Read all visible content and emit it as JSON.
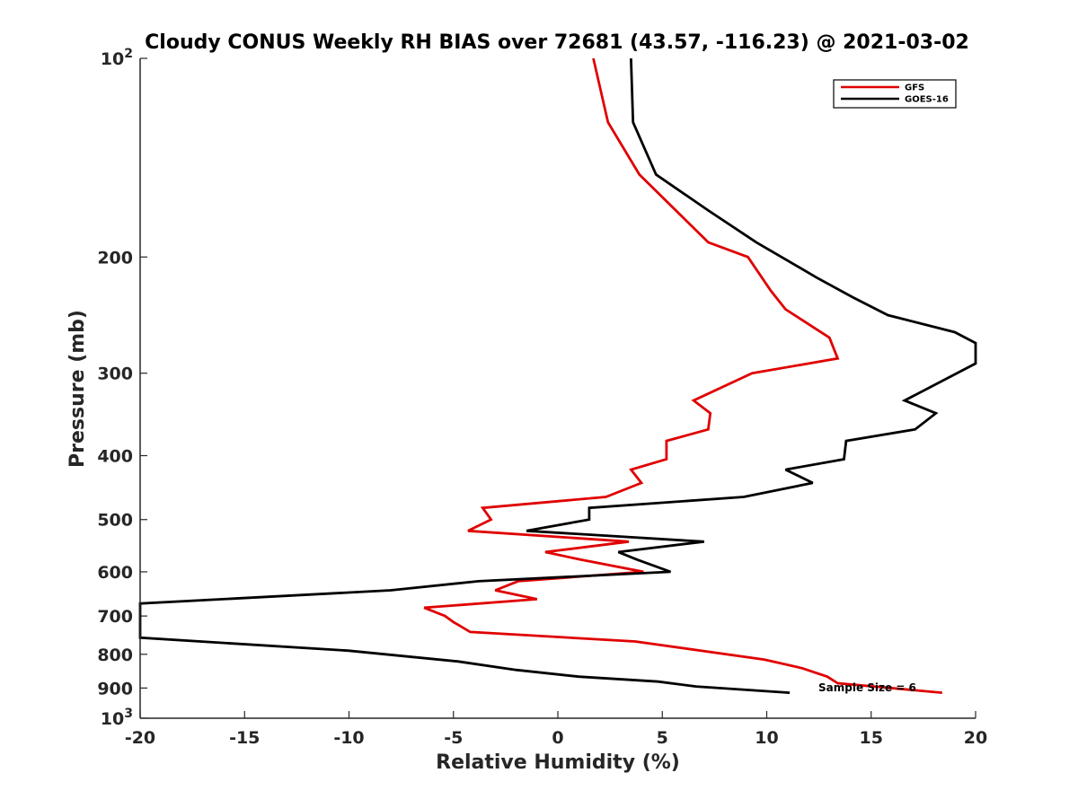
{
  "chart_data": {
    "type": "line",
    "title": "Cloudy CONUS Weekly RH BIAS over 72681 (43.57, -116.23) @ 2021-03-02",
    "xlabel": "Relative Humidity (%)",
    "ylabel": "Pressure (mb)",
    "xlim": [
      -20,
      20
    ],
    "ylim": [
      100,
      1000
    ],
    "y_scale": "log",
    "y_reversed": true,
    "grid": false,
    "legend_position": "top-right",
    "x_ticks": [
      "-20",
      "-15",
      "-10",
      "-5",
      "0",
      "5",
      "10",
      "15",
      "20"
    ],
    "y_ticks": [
      {
        "value": 100,
        "base": "10",
        "exp": "2"
      },
      {
        "value": 200,
        "label": "200"
      },
      {
        "value": 300,
        "label": "300"
      },
      {
        "value": 400,
        "label": "400"
      },
      {
        "value": 500,
        "label": "500"
      },
      {
        "value": 600,
        "label": "600"
      },
      {
        "value": 700,
        "label": "700"
      },
      {
        "value": 800,
        "label": "800"
      },
      {
        "value": 900,
        "label": "900"
      },
      {
        "value": 1000,
        "base": "10",
        "exp": "3"
      }
    ],
    "series": [
      {
        "name": "GFS",
        "color": "#e00000",
        "points": [
          {
            "x": 1.7,
            "y": 100
          },
          {
            "x": 2.4,
            "y": 125
          },
          {
            "x": 3.9,
            "y": 150
          },
          {
            "x": 7.2,
            "y": 190
          },
          {
            "x": 9.1,
            "y": 200
          },
          {
            "x": 10.2,
            "y": 225
          },
          {
            "x": 10.9,
            "y": 240
          },
          {
            "x": 13.0,
            "y": 265
          },
          {
            "x": 13.4,
            "y": 285
          },
          {
            "x": 9.3,
            "y": 300
          },
          {
            "x": 6.5,
            "y": 330
          },
          {
            "x": 7.3,
            "y": 345
          },
          {
            "x": 7.2,
            "y": 365
          },
          {
            "x": 5.2,
            "y": 380
          },
          {
            "x": 5.2,
            "y": 405
          },
          {
            "x": 3.5,
            "y": 420
          },
          {
            "x": 4.0,
            "y": 440
          },
          {
            "x": 2.3,
            "y": 462
          },
          {
            "x": -3.6,
            "y": 480
          },
          {
            "x": -3.2,
            "y": 500
          },
          {
            "x": -4.3,
            "y": 520
          },
          {
            "x": 3.4,
            "y": 540
          },
          {
            "x": -0.6,
            "y": 560
          },
          {
            "x": 1.1,
            "y": 575
          },
          {
            "x": 4.1,
            "y": 600
          },
          {
            "x": -1.9,
            "y": 620
          },
          {
            "x": -3.0,
            "y": 640
          },
          {
            "x": -1.0,
            "y": 660
          },
          {
            "x": -6.4,
            "y": 680
          },
          {
            "x": -5.4,
            "y": 700
          },
          {
            "x": -5.0,
            "y": 715
          },
          {
            "x": -4.2,
            "y": 740
          },
          {
            "x": 3.7,
            "y": 765
          },
          {
            "x": 9.9,
            "y": 815
          },
          {
            "x": 11.7,
            "y": 840
          },
          {
            "x": 12.9,
            "y": 865
          },
          {
            "x": 13.4,
            "y": 885
          },
          {
            "x": 18.4,
            "y": 915
          }
        ]
      },
      {
        "name": "GOES-16",
        "color": "#000000",
        "points": [
          {
            "x": 3.5,
            "y": 100
          },
          {
            "x": 3.6,
            "y": 125
          },
          {
            "x": 4.7,
            "y": 150
          },
          {
            "x": 7.2,
            "y": 170
          },
          {
            "x": 9.5,
            "y": 190
          },
          {
            "x": 12.4,
            "y": 215
          },
          {
            "x": 14.1,
            "y": 230
          },
          {
            "x": 15.8,
            "y": 245
          },
          {
            "x": 19.0,
            "y": 260
          },
          {
            "x": 20.0,
            "y": 270
          },
          {
            "x": 20.0,
            "y": 290
          },
          {
            "x": 16.6,
            "y": 330
          },
          {
            "x": 18.1,
            "y": 345
          },
          {
            "x": 17.1,
            "y": 365
          },
          {
            "x": 13.8,
            "y": 380
          },
          {
            "x": 13.7,
            "y": 405
          },
          {
            "x": 10.9,
            "y": 420
          },
          {
            "x": 12.2,
            "y": 440
          },
          {
            "x": 8.9,
            "y": 462
          },
          {
            "x": 1.5,
            "y": 480
          },
          {
            "x": 1.5,
            "y": 500
          },
          {
            "x": -1.5,
            "y": 520
          },
          {
            "x": 7.0,
            "y": 540
          },
          {
            "x": 2.9,
            "y": 560
          },
          {
            "x": 3.8,
            "y": 575
          },
          {
            "x": 5.4,
            "y": 600
          },
          {
            "x": -3.8,
            "y": 620
          },
          {
            "x": -8.0,
            "y": 640
          },
          {
            "x": -20.0,
            "y": 670
          },
          {
            "x": -20.0,
            "y": 755
          },
          {
            "x": -10.0,
            "y": 790
          },
          {
            "x": -4.8,
            "y": 820
          },
          {
            "x": -2.0,
            "y": 845
          },
          {
            "x": 1.0,
            "y": 865
          },
          {
            "x": 4.8,
            "y": 880
          },
          {
            "x": 6.6,
            "y": 895
          },
          {
            "x": 11.1,
            "y": 915
          }
        ]
      }
    ],
    "annotation": "Sample Size = 6"
  }
}
